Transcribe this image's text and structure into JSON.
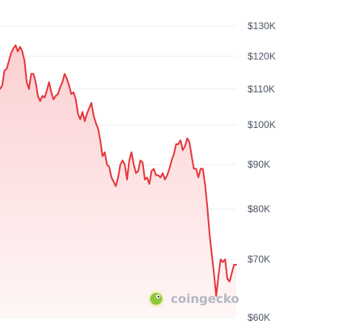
{
  "chart_data": {
    "type": "area",
    "title": "",
    "xlabel": "",
    "ylabel": "",
    "y_scale": "log",
    "ylim": [
      60000,
      130000
    ],
    "y_ticks": [
      {
        "value": 130000,
        "label": "$130K"
      },
      {
        "value": 120000,
        "label": "$120K"
      },
      {
        "value": 110000,
        "label": "$110K"
      },
      {
        "value": 100000,
        "label": "$100K"
      },
      {
        "value": 90000,
        "label": "$90K"
      },
      {
        "value": 80000,
        "label": "$80K"
      },
      {
        "value": 70000,
        "label": "$70K"
      },
      {
        "value": 60000,
        "label": "$60K"
      }
    ],
    "grid": true,
    "legend": "none",
    "line_color": "#e5363a",
    "fill_top_color": "#fbd0d2",
    "fill_bottom_color": "#fff6f6",
    "series": [
      {
        "values": [
          110000,
          111000,
          115500,
          116000,
          118500,
          121000,
          122500,
          123500,
          121500,
          123000,
          121500,
          118500,
          112000,
          110000,
          114500,
          114500,
          112000,
          108000,
          106500,
          108000,
          107500,
          109500,
          112000,
          109000,
          107000,
          108000,
          108500,
          110500,
          112000,
          114500,
          113000,
          111000,
          108500,
          109000,
          107000,
          103000,
          101500,
          103500,
          101000,
          103000,
          104500,
          106000,
          102500,
          100500,
          99000,
          96000,
          92000,
          93000,
          90000,
          89500,
          87000,
          86000,
          85000,
          87000,
          90000,
          91000,
          90000,
          86500,
          91000,
          93000,
          90000,
          88000,
          88500,
          91000,
          90500,
          86500,
          87000,
          85500,
          88500,
          89000,
          87500,
          87500,
          87000,
          88000,
          86500,
          87500,
          89000,
          91000,
          92500,
          95000,
          95000,
          96000,
          93500,
          94500,
          96500,
          95500,
          92000,
          89000,
          89000,
          87000,
          89000,
          89000,
          85500,
          80500,
          75000,
          71000,
          67500,
          63500,
          67000,
          70000,
          69500,
          70000,
          66500,
          66000,
          67500,
          69000,
          69000
        ]
      }
    ]
  },
  "watermark": {
    "text": "coingecko",
    "icon": "gecko-logo-icon",
    "icon_color": "#8dc63f"
  }
}
